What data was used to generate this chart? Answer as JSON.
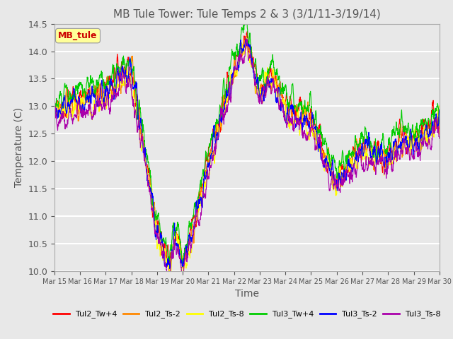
{
  "title": "MB Tule Tower: Tule Temps 2 & 3 (3/1/11-3/19/14)",
  "xlabel": "Time",
  "ylabel": "Temperature (C)",
  "ylim": [
    10.0,
    14.5
  ],
  "yticks": [
    10.0,
    10.5,
    11.0,
    11.5,
    12.0,
    12.5,
    13.0,
    13.5,
    14.0,
    14.5
  ],
  "xtick_labels": [
    "Mar 15",
    "Mar 16",
    "Mar 17",
    "Mar 18",
    "Mar 19",
    "Mar 20",
    "Mar 21",
    "Mar 22",
    "Mar 23",
    "Mar 24",
    "Mar 25",
    "Mar 26",
    "Mar 27",
    "Mar 28",
    "Mar 29",
    "Mar 30"
  ],
  "series_colors": {
    "Tul2_Tw+4": "#ff0000",
    "Tul2_Ts-2": "#ff8800",
    "Tul2_Ts-8": "#ffff00",
    "Tul3_Tw+4": "#00cc00",
    "Tul3_Ts-2": "#0000ff",
    "Tul3_Ts-8": "#aa00aa"
  },
  "background_color": "#e8e8e8",
  "plot_bg_color": "#e8e8e8",
  "legend_box_color": "#ffff99",
  "legend_box_text": "MB_tule",
  "legend_box_text_color": "#cc0000"
}
